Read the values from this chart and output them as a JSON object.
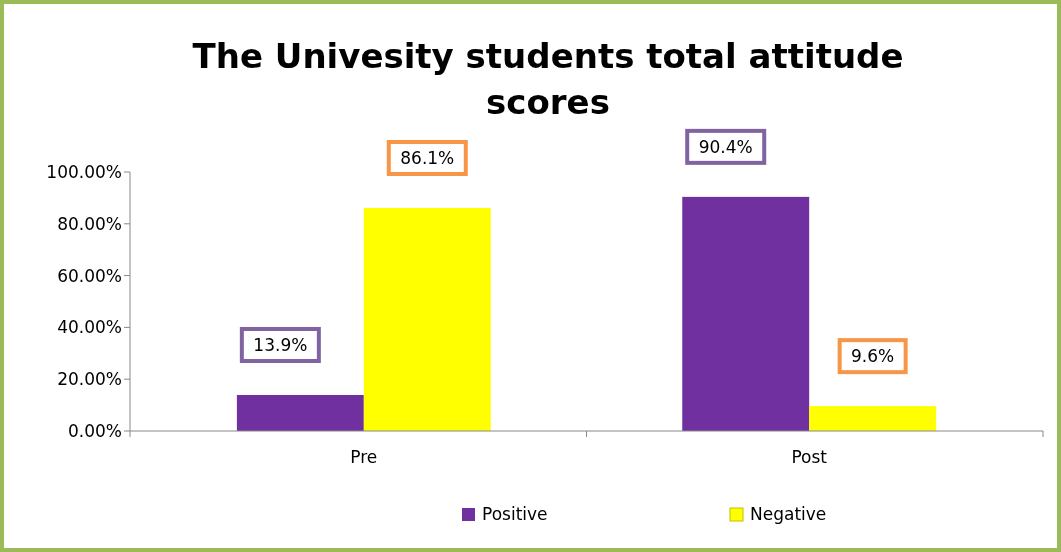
{
  "chart_data": {
    "type": "bar",
    "title": "The Univesity students total attitude scores",
    "categories": [
      "Pre",
      "Post"
    ],
    "series": [
      {
        "name": "Positive",
        "color": "#7030a0",
        "values": [
          13.9,
          90.4
        ],
        "value_labels": [
          "13.9%",
          "90.4%"
        ]
      },
      {
        "name": "Negative",
        "color": "#ffff00",
        "values": [
          86.1,
          9.6
        ],
        "value_labels": [
          "86.1%",
          "9.6%"
        ]
      }
    ],
    "ylim": [
      0,
      100
    ],
    "yticks": [
      {
        "value": 0,
        "label": "0.00%"
      },
      {
        "value": 20,
        "label": "20.00%"
      },
      {
        "value": 40,
        "label": "40.00%"
      },
      {
        "value": 60,
        "label": "60.00%"
      },
      {
        "value": 80,
        "label": "80.00%"
      },
      {
        "value": 100,
        "label": "100.00%"
      }
    ],
    "grid": false,
    "legend": "bottom"
  }
}
